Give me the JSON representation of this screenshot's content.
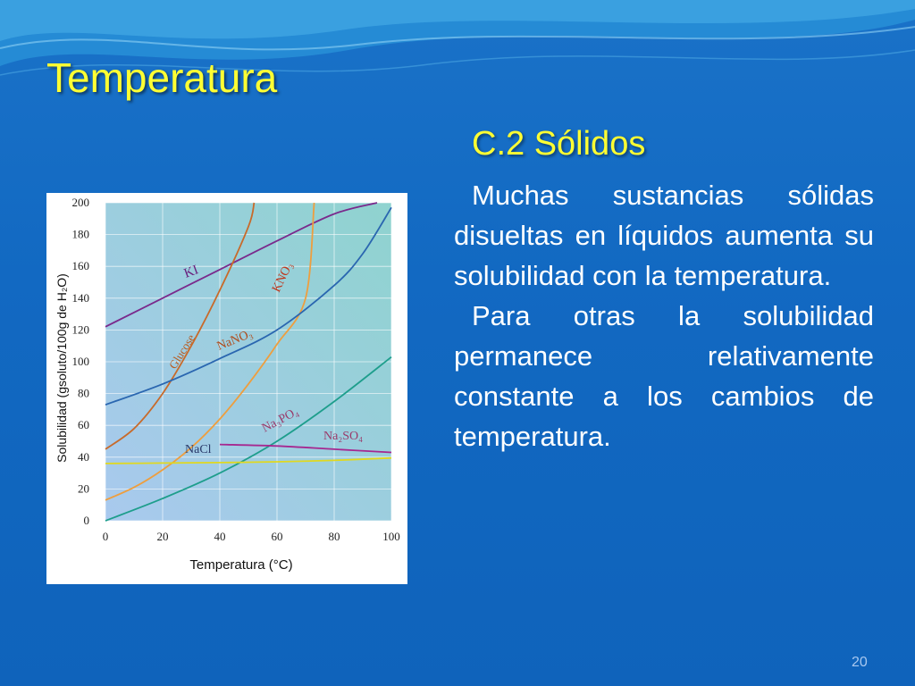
{
  "slide": {
    "title": "Temperatura",
    "subtitle": "C.2 Sólidos",
    "paragraphs": [
      "Muchas sustancias sólidas disueltas en líquidos aumenta su solubilidad con la temperatura.",
      "Para otras la solubilidad permanece relativamente constante a los cambios de temperatura."
    ],
    "page_number": "20"
  },
  "chart_data": {
    "type": "line",
    "xlabel": "Temperatura (°C)",
    "ylabel": "Solubilidad (gsoluto/100g de H₂O)",
    "xlim": [
      0,
      100
    ],
    "ylim": [
      0,
      200
    ],
    "x_ticks": [
      "0",
      "20",
      "40",
      "60",
      "80",
      "100"
    ],
    "y_ticks": [
      "0",
      "20",
      "40",
      "60",
      "80",
      "100",
      "120",
      "140",
      "160",
      "180",
      "200"
    ],
    "grid": true,
    "series": [
      {
        "name": "KI",
        "color": "#7a2a8c",
        "x": [
          0,
          20,
          40,
          60,
          80,
          95
        ],
        "y": [
          122,
          140,
          158,
          176,
          193,
          200
        ]
      },
      {
        "name": "Glucose",
        "color": "#c86a2a",
        "x": [
          0,
          10,
          20,
          30,
          40,
          50,
          52
        ],
        "y": [
          45,
          58,
          80,
          110,
          145,
          185,
          200
        ]
      },
      {
        "name": "KNO₃",
        "color": "#ee9e3e",
        "x": [
          0,
          10,
          20,
          30,
          40,
          50,
          60,
          70,
          73
        ],
        "y": [
          13,
          21,
          32,
          46,
          64,
          86,
          111,
          140,
          200
        ]
      },
      {
        "name": "NaNO₃",
        "color": "#2a66b0",
        "x": [
          0,
          20,
          40,
          60,
          80,
          90,
          100
        ],
        "y": [
          73,
          86,
          102,
          120,
          148,
          168,
          197
        ]
      },
      {
        "name": "Na₃PO₄",
        "color": "#1e9e8c",
        "x": [
          0,
          20,
          40,
          60,
          80,
          100
        ],
        "y": [
          0,
          14,
          30,
          50,
          75,
          103
        ]
      },
      {
        "name": "Na₂SO₄",
        "color": "#a62890",
        "x": [
          40,
          60,
          80,
          100
        ],
        "y": [
          48,
          47,
          45,
          43
        ]
      },
      {
        "name": "NaCl",
        "color": "#e0d820",
        "x": [
          0,
          20,
          40,
          60,
          80,
          100
        ],
        "y": [
          36,
          36.3,
          36.6,
          37.1,
          38,
          39.5
        ]
      }
    ]
  },
  "colors": {
    "background": "#1269c2",
    "title": "#ffff33",
    "body_text": "#ffffff",
    "plot_background": "#9dc7e4"
  }
}
